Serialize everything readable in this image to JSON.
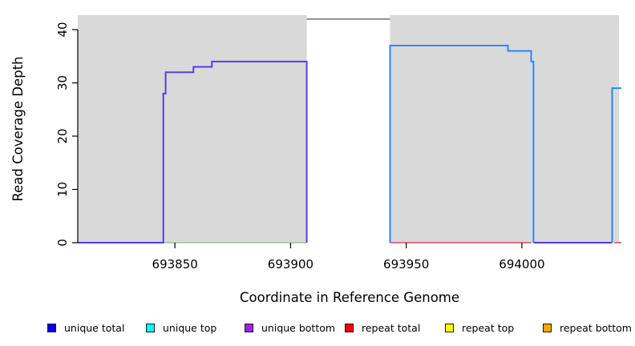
{
  "chart_data": {
    "type": "line",
    "title": "",
    "xlabel": "Coordinate in Reference Genome",
    "ylabel": "Read Coverage Depth",
    "xlim": [
      693808,
      694043
    ],
    "ylim": [
      0,
      42.7
    ],
    "x_ticks": [
      693850,
      693900,
      693950,
      694000
    ],
    "x_tick_labels": [
      "693850",
      "693900",
      "693950",
      "694000"
    ],
    "y_ticks": [
      0,
      10,
      20,
      30,
      40
    ],
    "y_tick_labels": [
      "0",
      "10",
      "20",
      "30",
      "40"
    ],
    "grid": "off",
    "plot_background": "#ffffff",
    "shaded_regions": [
      {
        "name": "left-flank-shading",
        "x0": 693808,
        "x1": 693907,
        "color": "#d9d9d9"
      },
      {
        "name": "right-flank-shading",
        "x0": 693943,
        "x1": 694042,
        "color": "#d9d9d9"
      }
    ],
    "gap_region": {
      "name": "unshaded-gap",
      "x0": 693907,
      "x1": 693943,
      "color": "#ffffff",
      "total_depth_line": 42
    },
    "series": [
      {
        "name": "zero-baseline-left-region",
        "color": "#8fce8f",
        "width": 1.6,
        "segments": [
          [
            [
              693845,
              0
            ],
            [
              693907,
              0
            ]
          ]
        ]
      },
      {
        "name": "zero-baseline-right-region",
        "color": "#d84a62",
        "width": 1.6,
        "segments": [
          [
            [
              693943,
              0
            ],
            [
              694004,
              0
            ]
          ],
          [
            [
              694040,
              0
            ],
            [
              694043,
              0
            ]
          ]
        ]
      },
      {
        "name": "gap-total-coverage",
        "color": "#8a8a8a",
        "width": 2,
        "segments": [
          [
            [
              693907,
              42
            ],
            [
              693943,
              42
            ]
          ]
        ]
      },
      {
        "name": "unique-bottom-coverage",
        "color": "#5b3be0",
        "width": 2,
        "segments": [
          [
            [
              693808,
              0
            ],
            [
              693845,
              0
            ],
            [
              693845,
              28
            ],
            [
              693846,
              28
            ],
            [
              693846,
              32
            ],
            [
              693858,
              32
            ],
            [
              693858,
              33
            ],
            [
              693866,
              33
            ],
            [
              693866,
              34
            ],
            [
              693907,
              34
            ],
            [
              693907,
              0
            ]
          ],
          [
            [
              694005,
              0
            ],
            [
              694039,
              0
            ]
          ]
        ]
      },
      {
        "name": "unique-total-coverage",
        "color": "#2e86f0",
        "width": 2,
        "segments": [
          [
            [
              693943,
              0
            ],
            [
              693943,
              37
            ],
            [
              693994,
              37
            ],
            [
              693994,
              36
            ],
            [
              694004,
              36
            ],
            [
              694004,
              34
            ],
            [
              694005,
              34
            ],
            [
              694005,
              0
            ]
          ],
          [
            [
              694039,
              0
            ],
            [
              694039,
              29
            ],
            [
              694043,
              29
            ]
          ]
        ]
      }
    ],
    "legend": {
      "position": "bottom",
      "items": [
        {
          "label": "unique total",
          "color": "#0000ff"
        },
        {
          "label": "unique top",
          "color": "#00ffff"
        },
        {
          "label": "unique bottom",
          "color": "#a020f0"
        },
        {
          "label": "repeat total",
          "color": "#ff0000"
        },
        {
          "label": "repeat top",
          "color": "#ffff00"
        },
        {
          "label": "repeat bottom",
          "color": "#ffa500"
        }
      ]
    }
  }
}
